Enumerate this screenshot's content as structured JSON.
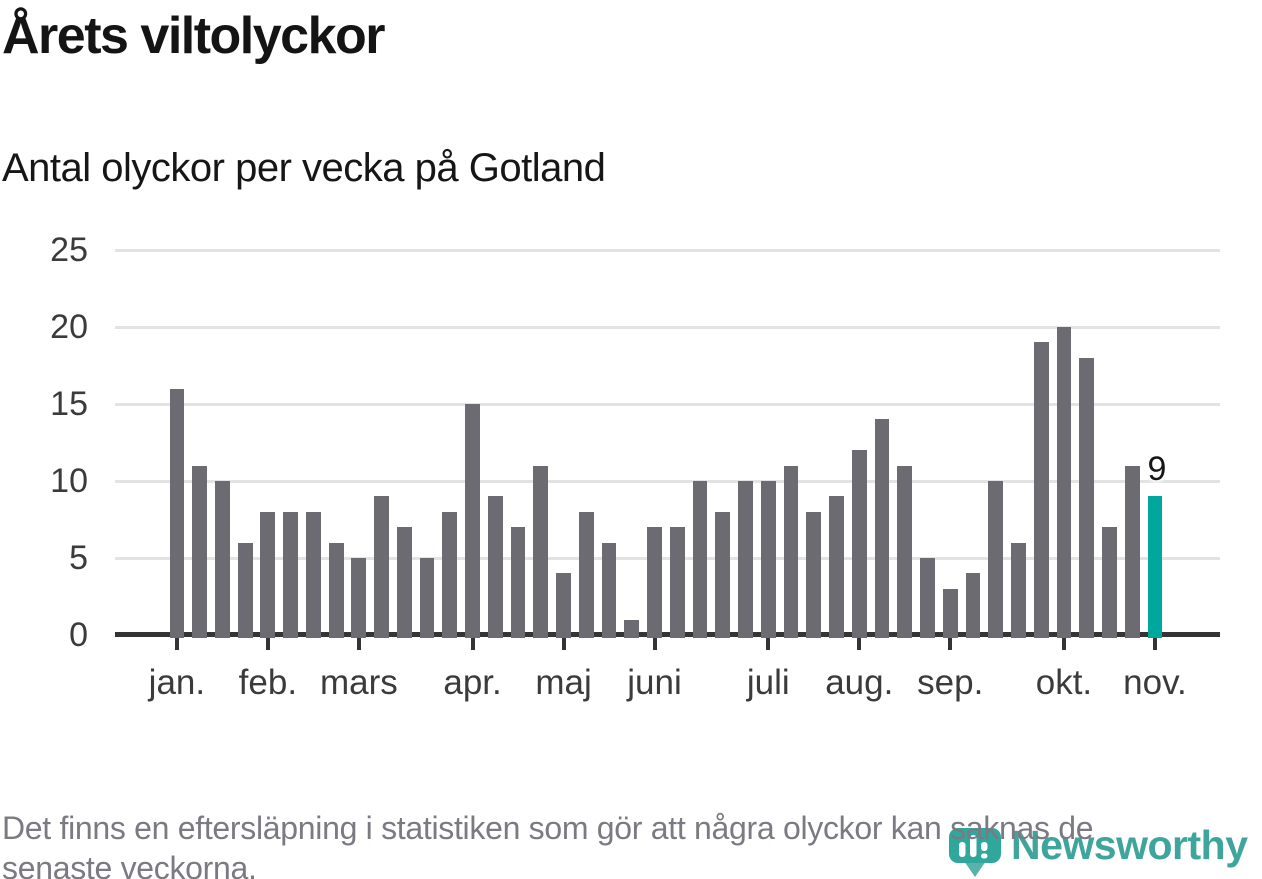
{
  "title": "Årets viltolyckor",
  "subtitle": "Antal olyckor per vecka på Gotland",
  "footer": {
    "line1": "Det finns en eftersläpning i statistiken som gör att några olyckor kan saknas de",
    "line2": "senaste veckorna."
  },
  "logo": {
    "brand": "Newsworthy",
    "icon": "newsworthy-pin-barchart-icon"
  },
  "colors": {
    "bar": "#6c6b71",
    "highlight": "#00a79d",
    "grid": "#e3e3e3",
    "axis": "#343434",
    "axis_label": "#3b3b3b",
    "annotation": "#161616",
    "footer_text": "#7b7a82",
    "title_text": "#141414",
    "logo_teal": "#3ea59d"
  },
  "chart_data": {
    "type": "bar",
    "title": "Årets viltolyckor",
    "subtitle": "Antal olyckor per vecka på Gotland",
    "x_unit": "vecka (week of year)",
    "categories": [
      1,
      2,
      3,
      4,
      5,
      6,
      7,
      8,
      9,
      10,
      11,
      12,
      13,
      14,
      15,
      16,
      17,
      18,
      19,
      20,
      21,
      22,
      23,
      24,
      25,
      26,
      27,
      28,
      29,
      30,
      31,
      32,
      33,
      34,
      35,
      36,
      37,
      38,
      39,
      40,
      41,
      42,
      43,
      44
    ],
    "values": [
      16,
      11,
      10,
      6,
      8,
      8,
      8,
      6,
      5,
      9,
      7,
      5,
      8,
      15,
      9,
      7,
      11,
      4,
      8,
      6,
      1,
      7,
      7,
      10,
      8,
      10,
      10,
      11,
      8,
      9,
      12,
      14,
      11,
      5,
      3,
      4,
      10,
      6,
      19,
      20,
      18,
      7,
      11,
      9
    ],
    "highlight_week": 44,
    "highlight_value": 9,
    "annotation_label": "9",
    "y_ticks": [
      0,
      5,
      10,
      15,
      20,
      25
    ],
    "ylim": [
      0,
      25
    ],
    "grid": true,
    "legend": false,
    "month_ticks": [
      {
        "label": "jan.",
        "week": 1
      },
      {
        "label": "feb.",
        "week": 5
      },
      {
        "label": "mars",
        "week": 9
      },
      {
        "label": "apr.",
        "week": 14
      },
      {
        "label": "maj",
        "week": 18
      },
      {
        "label": "juni",
        "week": 22
      },
      {
        "label": "juli",
        "week": 27
      },
      {
        "label": "aug.",
        "week": 31
      },
      {
        "label": "sep.",
        "week": 35
      },
      {
        "label": "okt.",
        "week": 40
      },
      {
        "label": "nov.",
        "week": 44
      }
    ]
  }
}
